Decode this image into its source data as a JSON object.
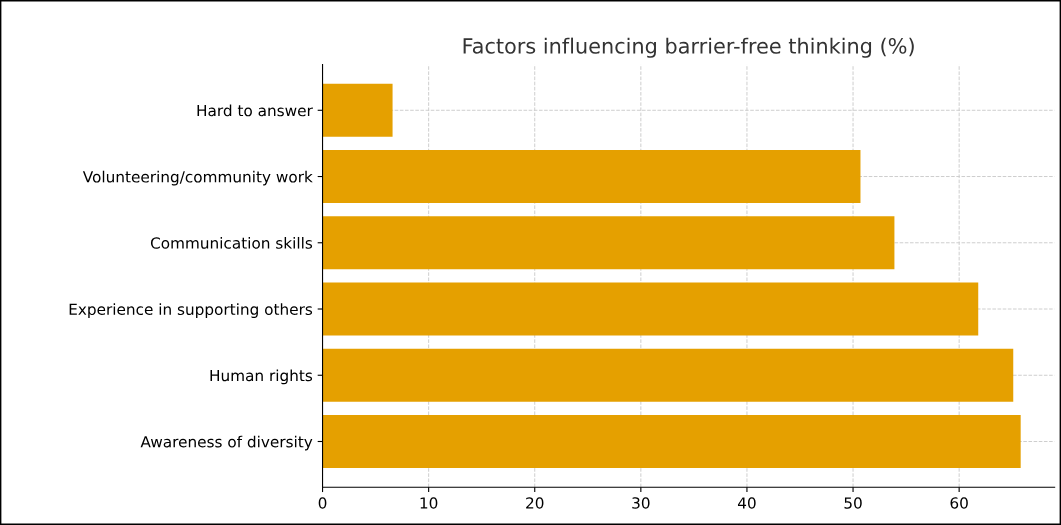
{
  "chart_data": {
    "type": "bar",
    "orientation": "horizontal",
    "title": "Factors influencing barrier-free thinking (%)",
    "categories": [
      "Hard to answer",
      "Volunteering/community work",
      "Communication skills",
      "Experience in supporting others",
      "Human rights",
      "Awareness of diversity"
    ],
    "values": [
      6.6,
      50.7,
      53.9,
      61.8,
      65.1,
      65.8
    ],
    "color": "#e5a000",
    "xlim": [
      0,
      69
    ],
    "xticks": [
      0,
      10,
      20,
      30,
      40,
      50,
      60
    ],
    "grid": true
  }
}
